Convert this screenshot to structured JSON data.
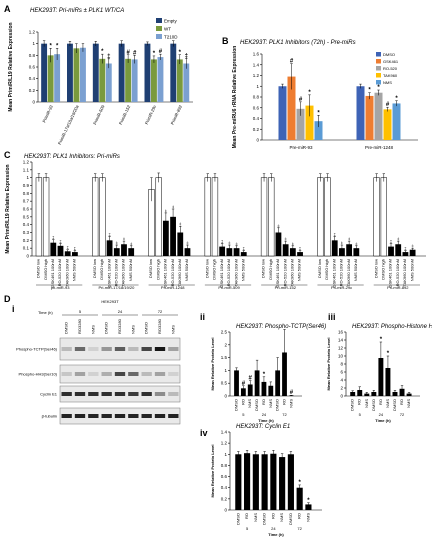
{
  "panels": {
    "A": {
      "letter": "A",
      "title": "HEK293T: Pri-miRs ± PLK1 WT/CA",
      "ylabel": "Mean PrimiR/L19 Relative Expression",
      "ylim": [
        0,
        1.2
      ],
      "yticks": [
        0,
        0.2,
        0.4,
        0.6,
        0.8,
        1,
        1.2
      ]
    },
    "B": {
      "letter": "B",
      "title": "HEK293T: PLK1 Inhibitors (72h) - Pre-miRs",
      "ylabel": "Mean Pre-miRU6 rRNA Relative Expression",
      "ylim": [
        0,
        1.6
      ],
      "yticks": [
        0,
        0.2,
        0.4,
        0.6,
        0.8,
        1,
        1.2,
        1.4,
        1.6
      ]
    },
    "C": {
      "letter": "C",
      "title": "HEK293T: PLK1 Inhibitors: Pri-miRs",
      "ylabel": "Mean PrimiR/L19 Relative Expression",
      "ylim": [
        0,
        1.2
      ],
      "yticks": [
        0,
        0.1,
        0.2,
        0.3,
        0.4,
        0.5,
        0.6,
        0.7,
        0.8,
        0.9,
        1,
        1.1,
        1.2
      ]
    },
    "D": {
      "letter": "D",
      "sub_i": "i",
      "sub_ii": "ii",
      "sub_iii": "iii",
      "sub_iv": "iv",
      "blot_cell": "HEK293T",
      "blot_time_label": "Time (h)",
      "blot_times": [
        "5",
        "24",
        "72"
      ],
      "blot_lanes": [
        "DMSO",
        "RO3280",
        "NMS",
        "DMSO",
        "RO3280",
        "NMS",
        "DMSO",
        "RO3280",
        "NMS"
      ],
      "blot_rows": [
        "Phospho-TCTP(Ser46)",
        "Phospho-HH3(Ser10)",
        "Cyclin E1",
        "β-tubulin"
      ],
      "ii_title": "HEK293T: Phospho-TCTP(Ser46)",
      "ii_ylabel": "Mean Relative Protein Level",
      "ii_xlabel": "Time (h)",
      "iii_title": "HEK293T: Phospho-Histone H3(Ser10)",
      "iii_ylabel": "Mean Relative Protein Level",
      "iii_xlabel": "Time (h)",
      "iv_title": "HEK293T: Cyclin E1",
      "iv_ylabel": "Mean Relative Protein Level",
      "iv_xlabel": "Time (h)",
      "groups": [
        "DMSO",
        "RO",
        "NMS"
      ],
      "times": [
        "5",
        "24",
        "72"
      ]
    }
  },
  "chart_data": [
    {
      "id": "A",
      "type": "bar",
      "categories": [
        "PrimiR-93",
        "PrimiR-17a/18a/19/20a",
        "PrimiR-509",
        "PrimiR-152",
        "PrimiR-29c",
        "PrimiR-892"
      ],
      "series": [
        {
          "name": "Empty",
          "color": "#1f3f73",
          "values": [
            1,
            1,
            1,
            1,
            1,
            1
          ],
          "err": [
            0.05,
            0.04,
            0.04,
            0.05,
            0.03,
            0.05
          ]
        },
        {
          "name": "WT",
          "color": "#7a9a3d",
          "values": [
            0.8,
            0.92,
            0.74,
            0.74,
            0.73,
            0.73
          ],
          "err": [
            0.12,
            0.08,
            0.08,
            0.07,
            0.06,
            0.08
          ]
        },
        {
          "name": "T210D",
          "color": "#7ba0d1",
          "values": [
            0.82,
            0.93,
            0.66,
            0.73,
            0.77,
            0.66
          ],
          "err": [
            0.1,
            0.07,
            0.08,
            0.07,
            0.05,
            0.09
          ]
        }
      ],
      "sig": [
        [
          "*",
          "*"
        ],
        [
          "",
          ""
        ],
        [
          "*",
          "‡"
        ],
        [
          "#",
          "#"
        ],
        [
          "*",
          "#"
        ],
        [
          "*",
          "‡"
        ]
      ]
    },
    {
      "id": "B",
      "type": "bar",
      "categories": [
        "Pre-miR-93",
        "Pre-miR-1248"
      ],
      "series": [
        {
          "name": "DMSO",
          "color": "#3e63b6",
          "values": [
            1,
            1
          ],
          "err": [
            0.04,
            0.04
          ]
        },
        {
          "name": "GSK461",
          "color": "#ee7d31",
          "values": [
            1.18,
            0.82
          ],
          "err": [
            0.24,
            0.06
          ]
        },
        {
          "name": "RO-520",
          "color": "#a5a5a5",
          "values": [
            0.58,
            0.88
          ],
          "err": [
            0.13,
            0.05
          ]
        },
        {
          "name": "TAK960",
          "color": "#ffc000",
          "values": [
            0.64,
            0.57
          ],
          "err": [
            0.2,
            0.04
          ]
        },
        {
          "name": "NMS",
          "color": "#5a9bd5",
          "values": [
            0.35,
            0.68
          ],
          "err": [
            0.11,
            0.05
          ]
        }
      ],
      "sig": [
        [
          "",
          "#",
          "#",
          "*",
          "*"
        ],
        [
          "",
          "*",
          "*",
          "#",
          "*"
        ]
      ]
    },
    {
      "id": "C",
      "type": "bar",
      "categories": [
        "pri-miR-93",
        "Pri-miR-17/18/19/20",
        "Pri-miR-1248",
        "Pri-miR-509",
        "Pri-miR-152",
        "Pri-miR-29c",
        "Pri-miR-892"
      ],
      "lane_labels": [
        "DMSO low",
        "DMSO high",
        "GSK461 100nM",
        "RO-520 100nM",
        "TAK960 100nM",
        "NMS 500nM"
      ],
      "values": [
        [
          1,
          1,
          0.17,
          0.13,
          0.06,
          0.05
        ],
        [
          1,
          1,
          0.2,
          0.1,
          0.15,
          0.1
        ],
        [
          0.85,
          1,
          0.45,
          0.5,
          0.3,
          0.1
        ],
        [
          1,
          1,
          0.12,
          0.1,
          0.1,
          0.05
        ],
        [
          1,
          1,
          0.3,
          0.15,
          0.1,
          0.05
        ],
        [
          1,
          1,
          0.2,
          0.1,
          0.15,
          0.1
        ],
        [
          1,
          1,
          0.12,
          0.15,
          0.05,
          0.08
        ]
      ],
      "err": [
        [
          0.05,
          0.05,
          0.04,
          0.03,
          0.02,
          0.02
        ],
        [
          0.05,
          0.05,
          0.05,
          0.04,
          0.04,
          0.03
        ],
        [
          0.15,
          0.06,
          0.1,
          0.1,
          0.08,
          0.04
        ],
        [
          0.05,
          0.05,
          0.04,
          0.04,
          0.03,
          0.02
        ],
        [
          0.05,
          0.05,
          0.06,
          0.04,
          0.03,
          0.02
        ],
        [
          0.05,
          0.05,
          0.05,
          0.04,
          0.04,
          0.03
        ],
        [
          0.05,
          0.05,
          0.04,
          0.04,
          0.02,
          0.02
        ]
      ]
    },
    {
      "id": "Dii",
      "type": "bar",
      "ylim": [
        0,
        2.5
      ],
      "yticks": [
        0,
        0.5,
        1,
        1.5,
        2,
        2.5
      ],
      "values": [
        1,
        0.3,
        0.45,
        1,
        0.55,
        0.4,
        1,
        1.7,
        0.02
      ],
      "err": [
        0.1,
        0.1,
        0.15,
        0.4,
        0.2,
        0.15,
        0.5,
        0.9,
        0.01
      ],
      "sig": [
        "",
        "#",
        "#",
        "",
        "*",
        "",
        "",
        "",
        "#"
      ]
    },
    {
      "id": "Diii",
      "type": "bar",
      "ylim": [
        0,
        16
      ],
      "yticks": [
        0,
        2,
        4,
        6,
        8,
        10,
        12,
        14,
        16
      ],
      "values": [
        1,
        1.5,
        0.6,
        1,
        9.5,
        7,
        1,
        1.8,
        0.6
      ],
      "err": [
        0.3,
        0.8,
        0.3,
        0.4,
        4,
        3,
        0.4,
        0.8,
        0.3
      ],
      "sig": [
        "",
        "",
        "",
        "",
        "*",
        "*",
        "",
        "",
        ""
      ]
    },
    {
      "id": "Div",
      "type": "bar",
      "ylim": [
        0,
        1.4
      ],
      "yticks": [
        0,
        0.2,
        0.4,
        0.6,
        0.8,
        1,
        1.2,
        1.4
      ],
      "values": [
        1,
        1.02,
        1,
        1,
        1.01,
        0.95,
        1,
        0.4,
        0.1
      ],
      "err": [
        0.05,
        0.05,
        0.05,
        0.05,
        0.06,
        0.06,
        0.05,
        0.05,
        0.03
      ],
      "sig": [
        "",
        "",
        "",
        "",
        "",
        "",
        "",
        "*",
        "*"
      ]
    }
  ]
}
